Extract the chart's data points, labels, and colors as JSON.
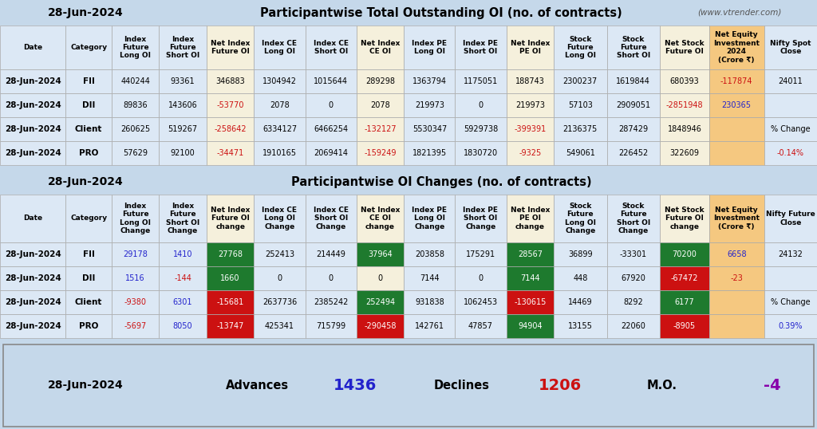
{
  "title1_date": "28-Jun-2024",
  "title1_main": "Participantwise Total Outstanding OI (no. of contracts)",
  "title1_web": "(www.vtrender.com)",
  "title2_date": "28-Jun-2024",
  "title2_main": "Participantwise OI Changes (no. of contracts)",
  "section1_headers": [
    "Date",
    "Category",
    "Index\nFuture\nLong OI",
    "Index\nFuture\nShort OI",
    "Net Index\nFuture OI",
    "Index CE\nLong OI",
    "Index CE\nShort OI",
    "Net Index\nCE OI",
    "Index PE\nLong OI",
    "Index PE\nShort OI",
    "Net Index\nPE OI",
    "Stock\nFuture\nLong OI",
    "Stock\nFuture\nShort OI",
    "Net Stock\nFuture OI",
    "Net Equity\nInvestment\n2024\n(Crore ₹)",
    "Nifty Spot\nClose"
  ],
  "section1_rows": [
    [
      "28-Jun-2024",
      "FII",
      "440244",
      "93361",
      "346883",
      "1304942",
      "1015644",
      "289298",
      "1363794",
      "1175051",
      "188743",
      "2300237",
      "1619844",
      "680393",
      "-117874",
      "24011"
    ],
    [
      "28-Jun-2024",
      "DII",
      "89836",
      "143606",
      "-53770",
      "2078",
      "0",
      "2078",
      "219973",
      "0",
      "219973",
      "57103",
      "2909051",
      "-2851948",
      "230365",
      ""
    ],
    [
      "28-Jun-2024",
      "Client",
      "260625",
      "519267",
      "-258642",
      "6334127",
      "6466254",
      "-132127",
      "5530347",
      "5929738",
      "-399391",
      "2136375",
      "287429",
      "1848946",
      "",
      "% Change"
    ],
    [
      "28-Jun-2024",
      "PRO",
      "57629",
      "92100",
      "-34471",
      "1910165",
      "2069414",
      "-159249",
      "1821395",
      "1830720",
      "-9325",
      "549061",
      "226452",
      "322609",
      "",
      "-0.14%"
    ]
  ],
  "section2_headers": [
    "Date",
    "Category",
    "Index\nFuture\nLong OI\nChange",
    "Index\nFuture\nShort OI\nChange",
    "Net Index\nFuture OI\nchange",
    "Index CE\nLong OI\nChange",
    "Index CE\nShort OI\nChange",
    "Net Index\nCE OI\nchange",
    "Index PE\nLong OI\nChange",
    "Index PE\nShort OI\nChange",
    "Net Index\nPE OI\nchange",
    "Stock\nFuture\nLong OI\nChange",
    "Stock\nFuture\nShort OI\nChange",
    "Net Stock\nFuture OI\nchange",
    "Net Equity\nInvestment\n(Crore ₹)",
    "Nifty Future\nClose"
  ],
  "section2_rows": [
    [
      "28-Jun-2024",
      "FII",
      "29178",
      "1410",
      "27768",
      "252413",
      "214449",
      "37964",
      "203858",
      "175291",
      "28567",
      "36899",
      "-33301",
      "70200",
      "6658",
      "24132"
    ],
    [
      "28-Jun-2024",
      "DII",
      "1516",
      "-144",
      "1660",
      "0",
      "0",
      "0",
      "7144",
      "0",
      "7144",
      "448",
      "67920",
      "-67472",
      "-23",
      ""
    ],
    [
      "28-Jun-2024",
      "Client",
      "-9380",
      "6301",
      "-15681",
      "2637736",
      "2385242",
      "252494",
      "931838",
      "1062453",
      "-130615",
      "14469",
      "8292",
      "6177",
      "",
      "% Change"
    ],
    [
      "28-Jun-2024",
      "PRO",
      "-5697",
      "8050",
      "-13747",
      "425341",
      "715799",
      "-290458",
      "142761",
      "47857",
      "94904",
      "13155",
      "22060",
      "-8905",
      "",
      "0.39%"
    ]
  ],
  "footer_date": "28-Jun-2024",
  "footer_advances_label": "Advances",
  "footer_advances_val": "1436",
  "footer_declines_label": "Declines",
  "footer_declines_val": "1206",
  "footer_mo_label": "M.O.",
  "footer_mo_val": "-4",
  "bg_header": "#c5d8ea",
  "bg_table": "#dce8f5",
  "bg_net_col": "#f5f0dc",
  "bg_green": "#1e7a2e",
  "bg_red": "#cc1111",
  "bg_neq_col": "#f5c880",
  "color_red": "#cc1111",
  "color_blue": "#2222cc",
  "color_white": "#ffffff",
  "color_black": "#000000",
  "color_purple": "#8800aa",
  "color_gray": "#555555"
}
